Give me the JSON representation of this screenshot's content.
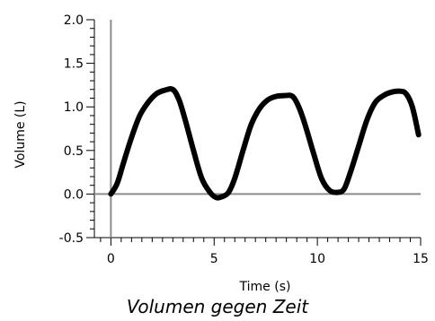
{
  "chart_data": {
    "type": "line",
    "title": "Volumen gegen Zeit",
    "xlabel": "Time (s)",
    "ylabel": "Volume (L)",
    "xlim": [
      -0.8,
      15
    ],
    "ylim": [
      -0.5,
      2.0
    ],
    "xticks": [
      0,
      5,
      10,
      15
    ],
    "xtick_labels": [
      "0",
      "5",
      "10",
      "15"
    ],
    "yticks": [
      -0.5,
      0.0,
      0.5,
      1.0,
      1.5,
      2.0
    ],
    "ytick_labels": [
      "-0.5",
      "0.0",
      "0.5",
      "1.0",
      "1.5",
      "2.0"
    ],
    "grid": false,
    "series": [
      {
        "color": "#000000",
        "x": [
          0,
          0.3,
          0.6,
          1.0,
          1.4,
          1.8,
          2.2,
          2.6,
          3.0,
          3.3,
          3.6,
          4.0,
          4.4,
          4.8,
          5.1,
          5.4,
          5.7,
          6.0,
          6.4,
          6.8,
          7.2,
          7.6,
          8.0,
          8.4,
          8.8,
          9.1,
          9.4,
          9.8,
          10.2,
          10.6,
          11.0,
          11.3,
          11.6,
          12.0,
          12.4,
          12.8,
          13.2,
          13.6,
          14.0,
          14.3,
          14.6,
          14.9
        ],
        "y": [
          0.0,
          0.12,
          0.35,
          0.65,
          0.9,
          1.05,
          1.15,
          1.19,
          1.2,
          1.08,
          0.85,
          0.5,
          0.18,
          0.02,
          -0.04,
          -0.03,
          0.02,
          0.18,
          0.5,
          0.8,
          0.98,
          1.08,
          1.12,
          1.13,
          1.12,
          1.0,
          0.8,
          0.48,
          0.18,
          0.04,
          0.02,
          0.06,
          0.25,
          0.55,
          0.85,
          1.05,
          1.13,
          1.17,
          1.18,
          1.15,
          1.0,
          0.68
        ]
      }
    ]
  }
}
